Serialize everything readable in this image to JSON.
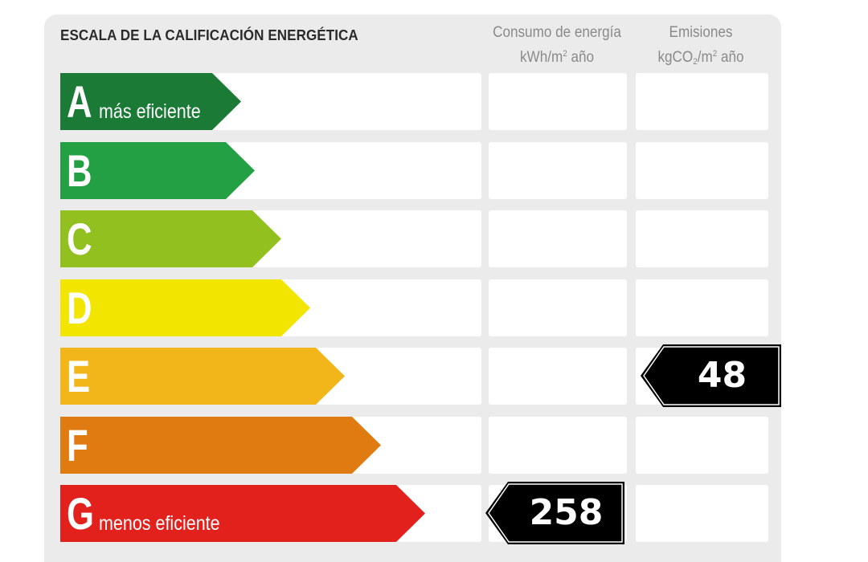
{
  "title": "ESCALA DE LA CALIFICACIÓN ENERGÉTICA",
  "columns": {
    "consumo": {
      "line1": "Consumo de energía",
      "line2_pre": "kWh/m",
      "line2_sup": "2",
      "line2_post": " año"
    },
    "emisiones": {
      "line1": "Emisiones",
      "line2_pre": "kgCO",
      "line2_sub": "2",
      "line2_mid": "/m",
      "line2_sup": "2",
      "line2_post": " año"
    }
  },
  "ratings": [
    {
      "letter": "A",
      "label": "más eficiente",
      "color": "#1a7a36"
    },
    {
      "letter": "B",
      "label": "",
      "color": "#22a043"
    },
    {
      "letter": "C",
      "label": "",
      "color": "#92c11f"
    },
    {
      "letter": "D",
      "label": "",
      "color": "#f2e500"
    },
    {
      "letter": "E",
      "label": "",
      "color": "#f3b61a"
    },
    {
      "letter": "F",
      "label": "",
      "color": "#e07b11"
    },
    {
      "letter": "G",
      "label": "menos eficiente",
      "color": "#e2211d"
    }
  ],
  "results": {
    "consumo": {
      "value": "258",
      "rating": "G"
    },
    "emisiones": {
      "value": "48",
      "rating": "E"
    }
  }
}
